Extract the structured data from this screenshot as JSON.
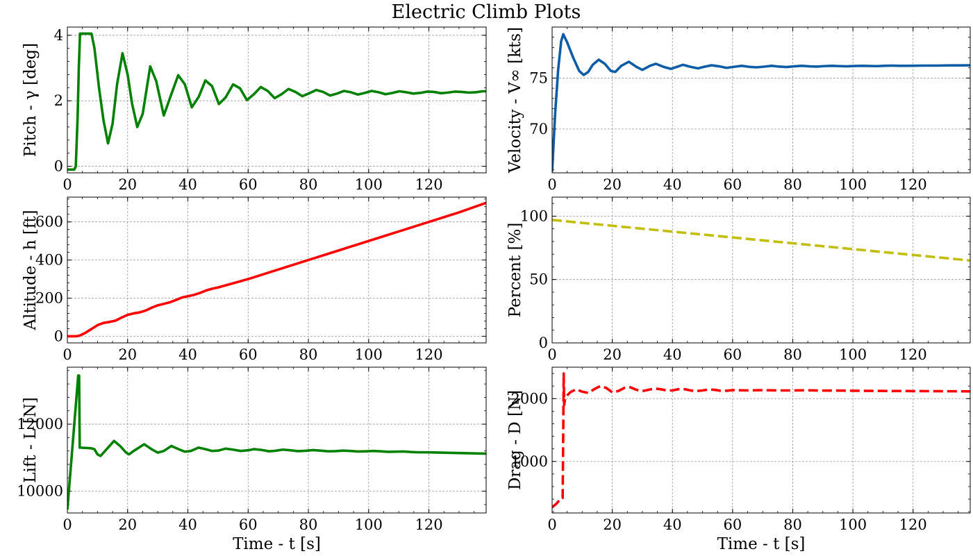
{
  "figure": {
    "title": "Electric Climb Plots"
  },
  "chart_data": [
    {
      "type": "line",
      "panel": "top-left",
      "ylabel": "Pitch - γ [deg]",
      "xlabel": "",
      "xlim": [
        0,
        139
      ],
      "ylim": [
        -0.2,
        4.25
      ],
      "xticks": [
        0,
        20,
        40,
        60,
        80,
        100,
        120
      ],
      "yticks": [
        0,
        2,
        4
      ],
      "grid": true,
      "series": [
        {
          "color": "#008000",
          "dashed": false,
          "x": [
            0,
            2.3,
            2.8,
            3.4,
            3.8,
            4.2,
            8,
            9,
            10.5,
            12,
            13.5,
            15,
            16.5,
            18.3,
            20,
            21.5,
            23.2,
            25,
            27.5,
            29.5,
            32,
            34.5,
            36.8,
            39,
            41.3,
            43.6,
            45.8,
            48,
            50.3,
            52.5,
            55,
            57.3,
            59.6,
            61.9,
            64.2,
            66.5,
            68.8,
            71.1,
            73.4,
            75.7,
            78,
            80.3,
            82.6,
            84.9,
            87.2,
            89.5,
            91.8,
            94.1,
            96.4,
            98.7,
            101,
            103.3,
            105.6,
            107.9,
            110.2,
            112.5,
            114.8,
            117.1,
            119.4,
            121.7,
            124,
            126.3,
            128.6,
            130.9,
            133.2,
            135.5,
            137.8,
            139
          ],
          "y": [
            -0.1,
            -0.1,
            0.0,
            1.5,
            3.0,
            4.05,
            4.05,
            3.6,
            2.4,
            1.4,
            0.7,
            1.3,
            2.5,
            3.45,
            2.8,
            1.9,
            1.2,
            1.6,
            3.05,
            2.6,
            1.55,
            2.2,
            2.78,
            2.5,
            1.8,
            2.12,
            2.62,
            2.45,
            1.9,
            2.1,
            2.5,
            2.38,
            2.02,
            2.2,
            2.42,
            2.3,
            2.08,
            2.2,
            2.36,
            2.27,
            2.14,
            2.23,
            2.33,
            2.27,
            2.16,
            2.22,
            2.3,
            2.26,
            2.19,
            2.24,
            2.3,
            2.26,
            2.2,
            2.24,
            2.29,
            2.26,
            2.22,
            2.24,
            2.28,
            2.27,
            2.23,
            2.25,
            2.28,
            2.27,
            2.25,
            2.26,
            2.29,
            2.29
          ]
        }
      ]
    },
    {
      "type": "line",
      "panel": "top-right",
      "ylabel": "Velocity - V∞ [kts]",
      "xlabel": "",
      "xlim": [
        0,
        139
      ],
      "ylim": [
        65.7,
        80.0
      ],
      "xticks": [
        0,
        20,
        40,
        60,
        80,
        100,
        120
      ],
      "yticks": [
        70,
        75
      ],
      "grid": true,
      "series": [
        {
          "color": "#0C5DA5",
          "dashed": false,
          "x": [
            0,
            1,
            2,
            3,
            3.7,
            5,
            7,
            9,
            10.5,
            12,
            13.5,
            15.5,
            17.5,
            19.5,
            21,
            23,
            25.5,
            28,
            30,
            32.5,
            34.5,
            37,
            39.5,
            41.5,
            43.5,
            46,
            48.5,
            50.5,
            53,
            55.5,
            58,
            60.5,
            63,
            65.5,
            68,
            70.5,
            73,
            75.5,
            78,
            80.5,
            83,
            85.5,
            88,
            90.5,
            93,
            95.5,
            98,
            100.5,
            103,
            105.5,
            108,
            110.5,
            113,
            115.5,
            118,
            120.5,
            123,
            125.5,
            128,
            130.5,
            133,
            135.5,
            139
          ],
          "y": [
            65.8,
            71.5,
            75.8,
            78.6,
            79.3,
            78.5,
            77.0,
            75.7,
            75.3,
            75.6,
            76.3,
            76.8,
            76.4,
            75.7,
            75.6,
            76.2,
            76.6,
            76.1,
            75.8,
            76.2,
            76.4,
            76.1,
            75.9,
            76.1,
            76.3,
            76.1,
            75.95,
            76.1,
            76.25,
            76.15,
            76.0,
            76.1,
            76.2,
            76.1,
            76.05,
            76.12,
            76.2,
            76.12,
            76.08,
            76.15,
            76.2,
            76.15,
            76.12,
            76.17,
            76.2,
            76.17,
            76.15,
            76.18,
            76.2,
            76.18,
            76.17,
            76.2,
            76.22,
            76.2,
            76.2,
            76.21,
            76.22,
            76.22,
            76.22,
            76.23,
            76.24,
            76.24,
            76.25
          ]
        }
      ]
    },
    {
      "type": "line",
      "panel": "middle-left",
      "ylabel": "Altitude - h [ft]",
      "xlabel": "",
      "xlim": [
        0,
        139
      ],
      "ylim": [
        -35,
        730
      ],
      "xticks": [
        0,
        20,
        40,
        60,
        80,
        100,
        120
      ],
      "yticks": [
        0,
        200,
        400,
        600
      ],
      "grid": true,
      "series": [
        {
          "color": "#FF0000",
          "dashed": false,
          "x": [
            0,
            3,
            4,
            6,
            8,
            10,
            12,
            14,
            16,
            18,
            20,
            22,
            24,
            26,
            28,
            30,
            32,
            34,
            36,
            38,
            40,
            42,
            44,
            46,
            48,
            50,
            55,
            60,
            70,
            80,
            90,
            100,
            110,
            120,
            130,
            139
          ],
          "y": [
            0,
            0,
            3,
            18,
            38,
            58,
            70,
            75,
            82,
            98,
            112,
            120,
            125,
            135,
            150,
            162,
            170,
            178,
            190,
            203,
            210,
            217,
            227,
            240,
            249,
            256,
            278,
            300,
            350,
            400,
            450,
            500,
            550,
            600,
            650,
            700
          ]
        }
      ]
    },
    {
      "type": "line",
      "panel": "middle-right",
      "ylabel": "Percent [%]",
      "xlabel": "",
      "xlim": [
        0,
        139
      ],
      "ylim": [
        0,
        115
      ],
      "xticks": [
        0,
        20,
        40,
        60,
        80,
        100,
        120
      ],
      "yticks": [
        0,
        50,
        100
      ],
      "grid": true,
      "series": [
        {
          "color": "#C2BE0C",
          "dashed": true,
          "x": [
            0,
            139
          ],
          "y": [
            97,
            65
          ]
        }
      ]
    },
    {
      "type": "line",
      "panel": "bottom-left",
      "ylabel": "Lift - L [N]",
      "xlabel": "Time - t [s]",
      "xlim": [
        0,
        139
      ],
      "ylim": [
        9350,
        13700
      ],
      "xticks": [
        0,
        20,
        40,
        60,
        80,
        100,
        120
      ],
      "yticks": [
        10000,
        12000
      ],
      "grid": true,
      "series": [
        {
          "color": "#008000",
          "dashed": false,
          "x": [
            0,
            3.6,
            3.9,
            4.1,
            4.3,
            8,
            9,
            10,
            11,
            13,
            15.5,
            17.5,
            19.5,
            20.5,
            22,
            25.5,
            28,
            30,
            32,
            34.5,
            37,
            39,
            41,
            43.5,
            46,
            48,
            50,
            52.5,
            55,
            57.5,
            60,
            62,
            64.5,
            67,
            69,
            71.5,
            74,
            76.5,
            79,
            81.5,
            84,
            86.5,
            89,
            91.5,
            94,
            96.5,
            99,
            101.5,
            104,
            106.5,
            109,
            111.5,
            114,
            116.5,
            119,
            121.5,
            124,
            126.5,
            129,
            131.5,
            134,
            136.5,
            139
          ],
          "y": [
            9450,
            13450,
            13450,
            11300,
            11300,
            11280,
            11250,
            11100,
            11050,
            11250,
            11500,
            11350,
            11150,
            11100,
            11200,
            11400,
            11250,
            11150,
            11200,
            11350,
            11250,
            11180,
            11200,
            11300,
            11250,
            11200,
            11210,
            11270,
            11240,
            11200,
            11220,
            11255,
            11230,
            11190,
            11205,
            11240,
            11220,
            11195,
            11205,
            11225,
            11210,
            11190,
            11195,
            11210,
            11200,
            11185,
            11190,
            11200,
            11190,
            11175,
            11180,
            11185,
            11170,
            11160,
            11160,
            11155,
            11150,
            11145,
            11140,
            11135,
            11130,
            11125,
            11120
          ]
        }
      ]
    },
    {
      "type": "line",
      "panel": "bottom-right",
      "ylabel": "Drag - D [N]",
      "xlabel": "Time - t [s]",
      "xlim": [
        0,
        139
      ],
      "ylim": [
        180,
        2500
      ],
      "xticks": [
        0,
        20,
        40,
        60,
        80,
        100,
        120
      ],
      "yticks": [
        1000,
        2000
      ],
      "grid": true,
      "series": [
        {
          "color": "#FF0000",
          "dashed": true,
          "x": [
            0,
            1.5,
            3,
            3.5,
            3.7,
            3.85,
            4,
            4.3,
            5,
            6,
            8,
            10,
            12,
            14,
            16,
            18,
            20,
            22,
            24,
            26,
            28,
            30,
            32,
            34,
            36,
            38,
            40,
            42,
            44,
            46,
            48,
            50,
            52,
            54,
            56,
            58,
            60,
            65,
            70,
            75,
            80,
            85,
            90,
            95,
            100,
            110,
            120,
            130,
            139
          ],
          "y": [
            270,
            330,
            420,
            420,
            1500,
            2400,
            1900,
            2000,
            2050,
            2100,
            2150,
            2110,
            2090,
            2150,
            2200,
            2170,
            2100,
            2120,
            2170,
            2180,
            2140,
            2120,
            2140,
            2160,
            2150,
            2130,
            2130,
            2150,
            2150,
            2130,
            2120,
            2130,
            2145,
            2140,
            2125,
            2125,
            2135,
            2130,
            2135,
            2130,
            2130,
            2132,
            2128,
            2128,
            2125,
            2122,
            2120,
            2118,
            2115
          ]
        }
      ]
    }
  ]
}
